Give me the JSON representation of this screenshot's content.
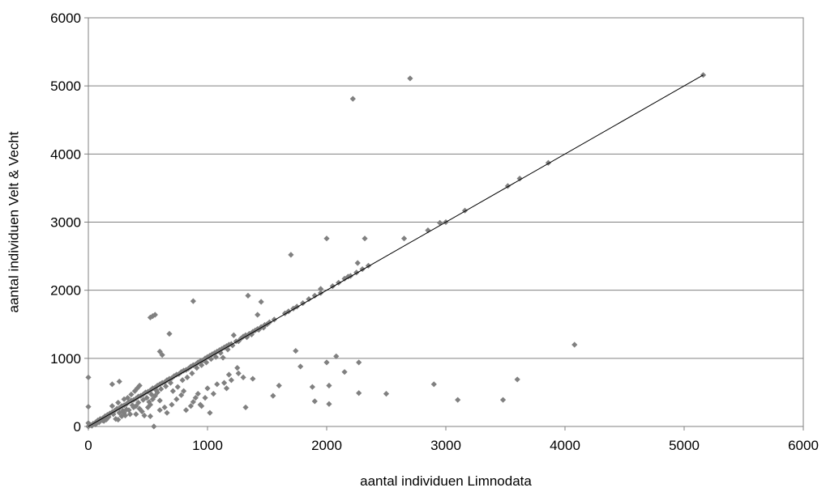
{
  "chart_data": {
    "type": "scatter",
    "title": "",
    "xlabel": "aantal individuen Limnodata",
    "ylabel": "aantal individuen Velt & Vecht",
    "xlim": [
      0,
      6000
    ],
    "ylim": [
      0,
      6000
    ],
    "xticks": [
      0,
      1000,
      2000,
      3000,
      4000,
      5000,
      6000
    ],
    "yticks": [
      0,
      1000,
      2000,
      3000,
      4000,
      5000,
      6000
    ],
    "x_tick_labels": [
      "0",
      "1000",
      "2000",
      "3000",
      "4000",
      "5000",
      "6000"
    ],
    "y_tick_labels": [
      "0",
      "1000",
      "2000",
      "3000",
      "4000",
      "5000",
      "6000"
    ],
    "grid": "horizontal",
    "legend": "none",
    "marker_color": "#808080",
    "trendline": {
      "x": [
        0,
        5160
      ],
      "y": [
        0,
        5160
      ],
      "color": "#000000"
    },
    "points": [
      [
        0,
        720
      ],
      [
        0,
        290
      ],
      [
        0,
        0
      ],
      [
        20,
        20
      ],
      [
        40,
        40
      ],
      [
        60,
        60
      ],
      [
        80,
        90
      ],
      [
        100,
        110
      ],
      [
        120,
        120
      ],
      [
        140,
        150
      ],
      [
        160,
        170
      ],
      [
        180,
        190
      ],
      [
        200,
        210
      ],
      [
        220,
        230
      ],
      [
        240,
        260
      ],
      [
        260,
        270
      ],
      [
        280,
        300
      ],
      [
        300,
        310
      ],
      [
        320,
        330
      ],
      [
        340,
        360
      ],
      [
        360,
        380
      ],
      [
        380,
        390
      ],
      [
        400,
        410
      ],
      [
        420,
        440
      ],
      [
        440,
        450
      ],
      [
        460,
        470
      ],
      [
        480,
        500
      ],
      [
        500,
        510
      ],
      [
        520,
        530
      ],
      [
        540,
        560
      ],
      [
        560,
        570
      ],
      [
        580,
        600
      ],
      [
        600,
        620
      ],
      [
        620,
        640
      ],
      [
        640,
        650
      ],
      [
        660,
        680
      ],
      [
        680,
        700
      ],
      [
        700,
        710
      ],
      [
        720,
        740
      ],
      [
        740,
        760
      ],
      [
        760,
        770
      ],
      [
        780,
        800
      ],
      [
        800,
        820
      ],
      [
        820,
        830
      ],
      [
        840,
        850
      ],
      [
        860,
        880
      ],
      [
        880,
        900
      ],
      [
        900,
        910
      ],
      [
        920,
        940
      ],
      [
        940,
        960
      ],
      [
        960,
        970
      ],
      [
        980,
        1000
      ],
      [
        1000,
        1020
      ],
      [
        1020,
        1040
      ],
      [
        1040,
        1060
      ],
      [
        1060,
        1080
      ],
      [
        1080,
        1100
      ],
      [
        1100,
        1120
      ],
      [
        1120,
        1140
      ],
      [
        1140,
        1160
      ],
      [
        1160,
        1180
      ],
      [
        1180,
        1200
      ],
      [
        1200,
        1210
      ],
      [
        1240,
        1250
      ],
      [
        1280,
        1290
      ],
      [
        1300,
        1320
      ],
      [
        1320,
        1340
      ],
      [
        1350,
        1360
      ],
      [
        1380,
        1390
      ],
      [
        1400,
        1410
      ],
      [
        1420,
        1430
      ],
      [
        1450,
        1460
      ],
      [
        1480,
        1490
      ],
      [
        1520,
        1530
      ],
      [
        1560,
        1570
      ],
      [
        1650,
        1660
      ],
      [
        1680,
        1690
      ],
      [
        1720,
        1730
      ],
      [
        1750,
        1760
      ],
      [
        1800,
        1810
      ],
      [
        1850,
        1870
      ],
      [
        1900,
        1920
      ],
      [
        1950,
        1960
      ],
      [
        2050,
        2060
      ],
      [
        2100,
        2110
      ],
      [
        2150,
        2170
      ],
      [
        2200,
        2210
      ],
      [
        2250,
        2260
      ],
      [
        2300,
        2310
      ],
      [
        2350,
        2360
      ],
      [
        2850,
        2880
      ],
      [
        2950,
        2990
      ],
      [
        3000,
        3000
      ],
      [
        3160,
        3170
      ],
      [
        3520,
        3530
      ],
      [
        3620,
        3640
      ],
      [
        3860,
        3870
      ],
      [
        5160,
        5160
      ],
      [
        200,
        620
      ],
      [
        260,
        660
      ],
      [
        150,
        100
      ],
      [
        120,
        90
      ],
      [
        250,
        100
      ],
      [
        280,
        150
      ],
      [
        300,
        200
      ],
      [
        320,
        250
      ],
      [
        350,
        180
      ],
      [
        380,
        280
      ],
      [
        400,
        300
      ],
      [
        420,
        350
      ],
      [
        300,
        400
      ],
      [
        250,
        350
      ],
      [
        200,
        300
      ],
      [
        330,
        420
      ],
      [
        360,
        470
      ],
      [
        390,
        520
      ],
      [
        410,
        560
      ],
      [
        430,
        600
      ],
      [
        450,
        220
      ],
      [
        470,
        160
      ],
      [
        500,
        280
      ],
      [
        520,
        320
      ],
      [
        540,
        400
      ],
      [
        560,
        450
      ],
      [
        580,
        500
      ],
      [
        600,
        380
      ],
      [
        520,
        150
      ],
      [
        550,
        0
      ],
      [
        520,
        1600
      ],
      [
        540,
        1620
      ],
      [
        560,
        1640
      ],
      [
        600,
        1100
      ],
      [
        620,
        1050
      ],
      [
        680,
        1360
      ],
      [
        880,
        1840
      ],
      [
        600,
        240
      ],
      [
        640,
        280
      ],
      [
        660,
        200
      ],
      [
        700,
        320
      ],
      [
        740,
        400
      ],
      [
        780,
        460
      ],
      [
        800,
        520
      ],
      [
        820,
        240
      ],
      [
        860,
        300
      ],
      [
        880,
        360
      ],
      [
        900,
        420
      ],
      [
        920,
        480
      ],
      [
        940,
        320
      ],
      [
        980,
        420
      ],
      [
        1000,
        560
      ],
      [
        1050,
        480
      ],
      [
        1080,
        620
      ],
      [
        950,
        300
      ],
      [
        1020,
        200
      ],
      [
        1140,
        640
      ],
      [
        1160,
        560
      ],
      [
        1180,
        760
      ],
      [
        1200,
        680
      ],
      [
        1220,
        1340
      ],
      [
        1250,
        860
      ],
      [
        1260,
        780
      ],
      [
        1300,
        720
      ],
      [
        1320,
        280
      ],
      [
        1340,
        1920
      ],
      [
        1380,
        700
      ],
      [
        1420,
        1640
      ],
      [
        1450,
        1830
      ],
      [
        1550,
        450
      ],
      [
        1600,
        600
      ],
      [
        1700,
        2520
      ],
      [
        1740,
        1110
      ],
      [
        1780,
        880
      ],
      [
        1880,
        580
      ],
      [
        1900,
        370
      ],
      [
        1950,
        2020
      ],
      [
        2000,
        940
      ],
      [
        2000,
        2760
      ],
      [
        2020,
        330
      ],
      [
        2020,
        600
      ],
      [
        2080,
        1030
      ],
      [
        2150,
        800
      ],
      [
        2180,
        2200
      ],
      [
        2220,
        4810
      ],
      [
        2260,
        2400
      ],
      [
        2270,
        490
      ],
      [
        2270,
        940
      ],
      [
        2320,
        2760
      ],
      [
        2500,
        480
      ],
      [
        2650,
        2760
      ],
      [
        2700,
        5110
      ],
      [
        2900,
        620
      ],
      [
        3100,
        390
      ],
      [
        3480,
        390
      ],
      [
        3600,
        690
      ],
      [
        4080,
        1200
      ],
      [
        0,
        50
      ],
      [
        30,
        10
      ],
      [
        60,
        30
      ],
      [
        90,
        60
      ],
      [
        130,
        80
      ],
      [
        170,
        140
      ],
      [
        210,
        180
      ],
      [
        230,
        110
      ],
      [
        260,
        200
      ],
      [
        290,
        230
      ],
      [
        310,
        160
      ],
      [
        340,
        240
      ],
      [
        370,
        310
      ],
      [
        400,
        180
      ],
      [
        430,
        260
      ],
      [
        460,
        390
      ],
      [
        490,
        420
      ],
      [
        510,
        360
      ],
      [
        530,
        470
      ],
      [
        570,
        530
      ],
      [
        610,
        550
      ],
      [
        650,
        590
      ],
      [
        690,
        640
      ],
      [
        710,
        520
      ],
      [
        750,
        580
      ],
      [
        790,
        680
      ],
      [
        830,
        720
      ],
      [
        870,
        780
      ],
      [
        910,
        860
      ],
      [
        950,
        900
      ],
      [
        990,
        940
      ],
      [
        1030,
        990
      ],
      [
        1070,
        1020
      ],
      [
        1110,
        1080
      ],
      [
        1130,
        1010
      ],
      [
        1170,
        1130
      ],
      [
        1210,
        1190
      ],
      [
        1260,
        1250
      ],
      [
        1330,
        1310
      ],
      [
        1370,
        1350
      ],
      [
        1430,
        1420
      ],
      [
        1470,
        1450
      ],
      [
        1500,
        1500
      ]
    ]
  }
}
